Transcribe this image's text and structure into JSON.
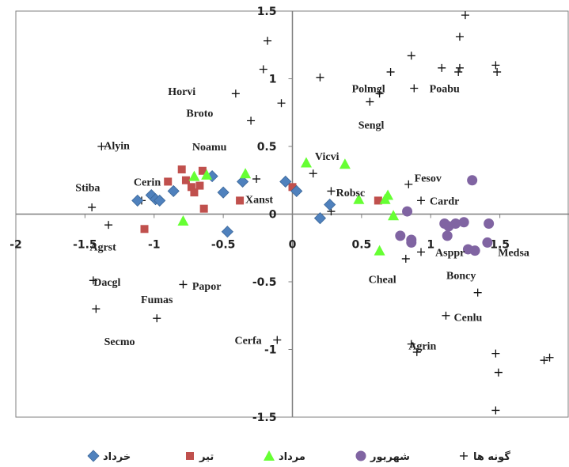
{
  "chart_data": {
    "type": "scatter",
    "title": "",
    "xlabel": "",
    "ylabel": "",
    "xlim": [
      -2,
      2
    ],
    "ylim": [
      -1.5,
      1.5
    ],
    "x_ticks": [
      "-2",
      "-1.5",
      "-1",
      "-0.5",
      "0",
      "0.5",
      "1",
      "1.5"
    ],
    "y_ticks": [
      "1.5",
      "1",
      "0.5",
      "0",
      "-0.5",
      "-1",
      "-1.5"
    ],
    "legend_position": "bottom",
    "grid": false,
    "series": [
      {
        "name": "خرداد",
        "marker": "diamond",
        "color": "#4f81bd",
        "points": [
          [
            -1.12,
            0.1
          ],
          [
            -1.02,
            0.14
          ],
          [
            -0.99,
            0.11
          ],
          [
            -0.96,
            0.1
          ],
          [
            -0.86,
            0.17
          ],
          [
            -0.58,
            0.28
          ],
          [
            -0.5,
            0.16
          ],
          [
            -0.47,
            -0.13
          ],
          [
            -0.36,
            0.24
          ],
          [
            -0.05,
            0.24
          ],
          [
            0.03,
            0.17
          ],
          [
            0.2,
            -0.03
          ],
          [
            0.27,
            0.07
          ]
        ]
      },
      {
        "name": "تیر",
        "color": "#c0504d",
        "marker": "square",
        "points": [
          [
            -1.07,
            -0.11
          ],
          [
            -0.9,
            0.24
          ],
          [
            -0.8,
            0.33
          ],
          [
            -0.77,
            0.25
          ],
          [
            -0.73,
            0.2
          ],
          [
            -0.71,
            0.16
          ],
          [
            -0.67,
            0.21
          ],
          [
            -0.65,
            0.32
          ],
          [
            -0.64,
            0.04
          ],
          [
            -0.38,
            0.1
          ],
          [
            0.0,
            0.2
          ],
          [
            0.62,
            0.1
          ]
        ]
      },
      {
        "name": "مرداد",
        "color": "#66ff33",
        "marker": "triangle",
        "points": [
          [
            -0.79,
            -0.05
          ],
          [
            -0.71,
            0.28
          ],
          [
            -0.62,
            0.29
          ],
          [
            -0.34,
            0.3
          ],
          [
            0.1,
            0.38
          ],
          [
            0.38,
            0.37
          ],
          [
            0.48,
            0.11
          ],
          [
            0.63,
            -0.27
          ],
          [
            0.67,
            0.11
          ],
          [
            0.69,
            0.14
          ],
          [
            0.73,
            -0.01
          ]
        ]
      },
      {
        "name": "شهریور",
        "color": "#8064a2",
        "marker": "circle",
        "points": [
          [
            0.78,
            -0.16
          ],
          [
            0.83,
            0.02
          ],
          [
            0.86,
            -0.19
          ],
          [
            0.86,
            -0.21
          ],
          [
            1.1,
            -0.07
          ],
          [
            1.12,
            -0.16
          ],
          [
            1.13,
            -0.09
          ],
          [
            1.18,
            -0.07
          ],
          [
            1.24,
            -0.06
          ],
          [
            1.27,
            -0.26
          ],
          [
            1.3,
            0.25
          ],
          [
            1.32,
            -0.27
          ],
          [
            1.41,
            -0.21
          ],
          [
            1.42,
            -0.07
          ]
        ]
      },
      {
        "name": "گونه ها",
        "color": "#111111",
        "marker": "plus",
        "points": [
          [
            -1.45,
            0.05
          ],
          [
            -1.33,
            -0.08
          ],
          [
            -1.44,
            -0.49
          ],
          [
            -1.42,
            -0.7
          ],
          [
            -1.38,
            0.5
          ],
          [
            -1.09,
            0.1
          ],
          [
            -0.79,
            -0.52
          ],
          [
            -0.98,
            -0.77
          ],
          [
            -0.41,
            0.89
          ],
          [
            -0.3,
            0.69
          ],
          [
            -0.26,
            0.26
          ],
          [
            -0.21,
            1.07
          ],
          [
            -0.18,
            1.28
          ],
          [
            -0.08,
            0.82
          ],
          [
            -0.11,
            -0.93
          ],
          [
            0.15,
            0.3
          ],
          [
            0.2,
            1.01
          ],
          [
            0.28,
            0.17
          ],
          [
            0.28,
            0.02
          ],
          [
            0.56,
            0.83
          ],
          [
            0.63,
            0.89
          ],
          [
            0.71,
            1.05
          ],
          [
            0.82,
            -0.33
          ],
          [
            0.84,
            0.22
          ],
          [
            0.86,
            1.17
          ],
          [
            0.88,
            0.93
          ],
          [
            0.93,
            0.1
          ],
          [
            0.93,
            -0.28
          ],
          [
            0.86,
            -0.96
          ],
          [
            0.9,
            -1.02
          ],
          [
            1.08,
            1.08
          ],
          [
            1.11,
            -0.75
          ],
          [
            1.21,
            1.08
          ],
          [
            1.21,
            1.31
          ],
          [
            1.25,
            1.47
          ],
          [
            1.34,
            -0.58
          ],
          [
            1.47,
            1.1
          ],
          [
            1.48,
            1.05
          ],
          [
            1.47,
            -1.03
          ],
          [
            1.49,
            -1.17
          ],
          [
            1.47,
            -1.45
          ],
          [
            1.82,
            -1.08
          ],
          [
            1.86,
            -1.06
          ],
          [
            1.2,
            1.05
          ]
        ]
      }
    ],
    "point_labels": [
      {
        "text": "Horvi",
        "x": -0.8,
        "y": 0.91
      },
      {
        "text": "Broto",
        "x": -0.67,
        "y": 0.75
      },
      {
        "text": "Noamu",
        "x": -0.6,
        "y": 0.5
      },
      {
        "text": "Alyin",
        "x": -1.27,
        "y": 0.51
      },
      {
        "text": "Stiba",
        "x": -1.48,
        "y": 0.2
      },
      {
        "text": "Cerin",
        "x": -1.05,
        "y": 0.24
      },
      {
        "text": "Agrst",
        "x": -1.37,
        "y": -0.24
      },
      {
        "text": "Xanst",
        "x": -0.24,
        "y": 0.11
      },
      {
        "text": "Dacgl",
        "x": -1.34,
        "y": -0.5
      },
      {
        "text": "Fumas",
        "x": -0.98,
        "y": -0.63
      },
      {
        "text": "Papor",
        "x": -0.62,
        "y": -0.53
      },
      {
        "text": "Secmo",
        "x": -1.25,
        "y": -0.94
      },
      {
        "text": "Cerfa",
        "x": -0.32,
        "y": -0.93
      },
      {
        "text": "Polmgl",
        "x": 0.55,
        "y": 0.93
      },
      {
        "text": "Poabu",
        "x": 1.1,
        "y": 0.93
      },
      {
        "text": "Sengl",
        "x": 0.57,
        "y": 0.66
      },
      {
        "text": "Vicvi",
        "x": 0.25,
        "y": 0.43
      },
      {
        "text": "Robsc",
        "x": 0.42,
        "y": 0.16
      },
      {
        "text": "Fesov",
        "x": 0.98,
        "y": 0.27
      },
      {
        "text": "Cardr",
        "x": 1.1,
        "y": 0.1
      },
      {
        "text": "Asppr",
        "x": 1.14,
        "y": -0.28
      },
      {
        "text": "Medsa",
        "x": 1.6,
        "y": -0.28
      },
      {
        "text": "Cheal",
        "x": 0.65,
        "y": -0.48
      },
      {
        "text": "Boncy",
        "x": 1.22,
        "y": -0.45
      },
      {
        "text": "Cenlu",
        "x": 1.27,
        "y": -0.76
      },
      {
        "text": "Agrin",
        "x": 0.94,
        "y": -0.97
      }
    ]
  }
}
